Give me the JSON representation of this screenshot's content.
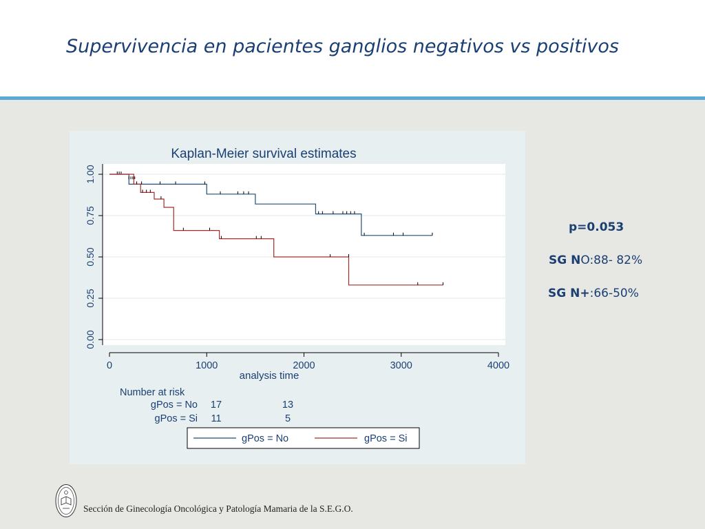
{
  "slide": {
    "title": "Supervivencia en pacientes  ganglios negativos vs positivos",
    "footer": "Sección de Ginecología Oncológica y Patología Mamaria de la S.E.G.O."
  },
  "stats": {
    "p_value": "p=0.053",
    "sg_no_label_bold": "SG N",
    "sg_no_label_rest": "O",
    "sg_no_value": ":88- 82%",
    "sg_pos_label_bold": "SG N+",
    "sg_pos_value": ":66-50%"
  },
  "colors": {
    "title": "#1a3f73",
    "header_rule": "#5aa8d6",
    "series_no": "#1f4e79",
    "series_si": "#a52a2a",
    "slide_bg": "#e7e8e4",
    "panel_bg": "#e8eff1"
  },
  "chart_data": {
    "type": "line",
    "title": "Kaplan-Meier survival estimates",
    "xlabel": "analysis time",
    "ylabel": "",
    "xlim": [
      0,
      4000
    ],
    "ylim": [
      0,
      1
    ],
    "x_ticks": [
      0,
      1000,
      2000,
      3000,
      4000
    ],
    "y_ticks": [
      "0.00",
      "0.25",
      "0.50",
      "0.75",
      "1.00"
    ],
    "grid": true,
    "step": true,
    "series": [
      {
        "name": "gPos = No",
        "steps": [
          [
            0,
            1.0
          ],
          [
            200,
            0.94
          ],
          [
            1000,
            0.88
          ],
          [
            1500,
            0.82
          ],
          [
            2120,
            0.76
          ],
          [
            2590,
            0.63
          ],
          [
            3320,
            0.63
          ]
        ],
        "censored": [
          [
            80,
            1.0
          ],
          [
            100,
            1.0
          ],
          [
            120,
            1.0
          ],
          [
            200,
            0.97
          ],
          [
            220,
            0.97
          ],
          [
            240,
            0.97
          ],
          [
            260,
            0.97
          ],
          [
            330,
            0.94
          ],
          [
            520,
            0.94
          ],
          [
            680,
            0.94
          ],
          [
            980,
            0.94
          ],
          [
            1140,
            0.88
          ],
          [
            1320,
            0.88
          ],
          [
            1380,
            0.88
          ],
          [
            1430,
            0.88
          ],
          [
            2150,
            0.76
          ],
          [
            2190,
            0.76
          ],
          [
            2300,
            0.76
          ],
          [
            2400,
            0.76
          ],
          [
            2440,
            0.76
          ],
          [
            2480,
            0.76
          ],
          [
            2520,
            0.76
          ],
          [
            2620,
            0.63
          ],
          [
            2920,
            0.63
          ],
          [
            3020,
            0.63
          ],
          [
            3320,
            0.63
          ]
        ]
      },
      {
        "name": "gPos = Si",
        "steps": [
          [
            0,
            1.0
          ],
          [
            250,
            0.94
          ],
          [
            320,
            0.89
          ],
          [
            460,
            0.85
          ],
          [
            560,
            0.8
          ],
          [
            660,
            0.66
          ],
          [
            720,
            0.66
          ],
          [
            1130,
            0.61
          ],
          [
            1690,
            0.5
          ],
          [
            2460,
            0.33
          ],
          [
            3430,
            0.33
          ]
        ],
        "censored": [
          [
            280,
            0.94
          ],
          [
            340,
            0.89
          ],
          [
            380,
            0.89
          ],
          [
            420,
            0.89
          ],
          [
            530,
            0.85
          ],
          [
            760,
            0.66
          ],
          [
            1030,
            0.66
          ],
          [
            1150,
            0.61
          ],
          [
            1510,
            0.61
          ],
          [
            1560,
            0.61
          ],
          [
            2270,
            0.5
          ],
          [
            2460,
            0.5
          ],
          [
            3170,
            0.33
          ],
          [
            3430,
            0.33
          ]
        ]
      }
    ],
    "risk_table": {
      "heading": "Number at risk",
      "times": [
        0,
        2000
      ],
      "rows": [
        {
          "label": "gPos = No",
          "counts": [
            "17",
            "13"
          ]
        },
        {
          "label": "gPos = Si",
          "counts": [
            "11",
            "5"
          ]
        }
      ]
    },
    "legend": {
      "placement": "bottom",
      "entries": [
        "gPos = No",
        "gPos = Si"
      ]
    }
  }
}
